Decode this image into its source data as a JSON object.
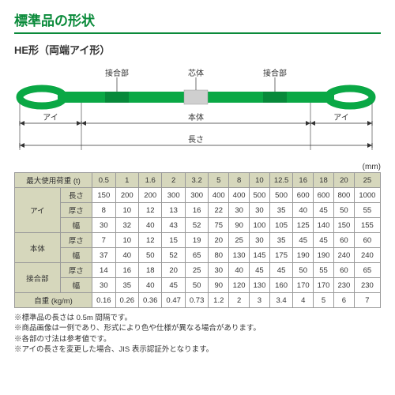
{
  "title": "標準品の形状",
  "subtitle": "HE形（両端アイ形）",
  "diagram": {
    "labels": {
      "joint": "接合部",
      "core": "芯体",
      "eye": "アイ",
      "body": "本体",
      "length": "長さ"
    },
    "colors": {
      "strap": "#0aa845",
      "core": "#cfcfcf",
      "dim": "#333333",
      "text": "#333333"
    }
  },
  "unit_label": "(mm)",
  "columns": [
    "最大使用荷重 (t)",
    "0.5",
    "1",
    "1.6",
    "2",
    "3.2",
    "5",
    "8",
    "10",
    "12.5",
    "16",
    "18",
    "20",
    "25"
  ],
  "groups": [
    {
      "name": "アイ",
      "rows": [
        {
          "label": "長さ",
          "v": [
            "150",
            "200",
            "200",
            "300",
            "300",
            "400",
            "400",
            "500",
            "500",
            "600",
            "600",
            "800",
            "1000"
          ]
        },
        {
          "label": "厚さ",
          "v": [
            "8",
            "10",
            "12",
            "13",
            "16",
            "22",
            "30",
            "30",
            "35",
            "40",
            "45",
            "50",
            "55"
          ]
        },
        {
          "label": "幅",
          "v": [
            "30",
            "32",
            "40",
            "43",
            "52",
            "75",
            "90",
            "100",
            "105",
            "125",
            "140",
            "150",
            "155"
          ]
        }
      ]
    },
    {
      "name": "本体",
      "rows": [
        {
          "label": "厚さ",
          "v": [
            "7",
            "10",
            "12",
            "15",
            "19",
            "20",
            "25",
            "30",
            "35",
            "45",
            "45",
            "60",
            "60"
          ]
        },
        {
          "label": "幅",
          "v": [
            "37",
            "40",
            "50",
            "52",
            "65",
            "80",
            "130",
            "145",
            "175",
            "190",
            "190",
            "240",
            "240"
          ]
        }
      ]
    },
    {
      "name": "接合部",
      "rows": [
        {
          "label": "厚さ",
          "v": [
            "14",
            "16",
            "18",
            "20",
            "25",
            "30",
            "40",
            "45",
            "45",
            "50",
            "55",
            "60",
            "65"
          ]
        },
        {
          "label": "幅",
          "v": [
            "30",
            "35",
            "40",
            "45",
            "50",
            "90",
            "120",
            "130",
            "160",
            "170",
            "170",
            "230",
            "230"
          ]
        }
      ]
    }
  ],
  "selfweight": {
    "label": "自重 (kg/m)",
    "v": [
      "0.16",
      "0.26",
      "0.36",
      "0.47",
      "0.73",
      "1.2",
      "2",
      "3",
      "3.4",
      "4",
      "5",
      "6",
      "7"
    ]
  },
  "notes": [
    "※標準品の長さは 0.5m 間隔です。",
    "※商品画像は一例であり、形式により色や仕様が異なる場合があります。",
    "※各部の寸法は参考値です。",
    "※アイの長さを変更した場合、JIS 表示認証外となります。"
  ]
}
